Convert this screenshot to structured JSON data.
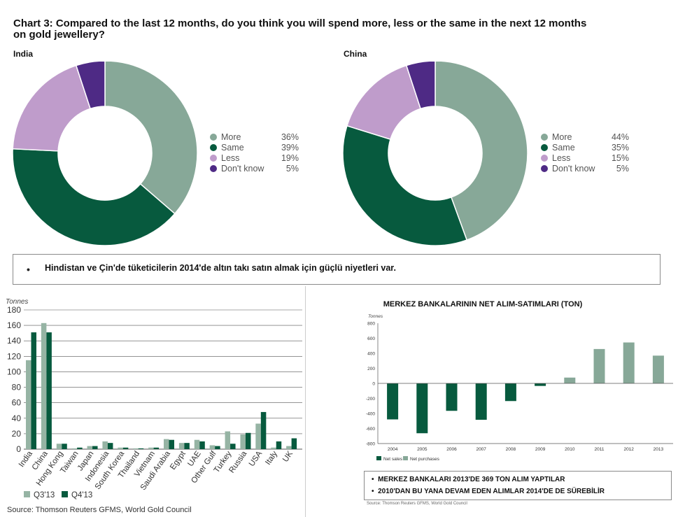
{
  "header": {
    "title_line1": "Chart 3: Compared to the last 12 months, do you think you will spend more, less or the same in the next 12 months",
    "title_line2": "on gold jewellery?"
  },
  "colors": {
    "more": "#87a898",
    "same": "#075a3e",
    "less": "#bf9ccb",
    "dontknow": "#4e2a85",
    "q3": "#96b4a4",
    "q4": "#075a3e",
    "cb_bar": "#87a898",
    "cb_sale": "#075a3e"
  },
  "chart_data": [
    {
      "type": "pie",
      "title": "India",
      "categories": [
        "More",
        "Same",
        "Less",
        "Don't know"
      ],
      "values": [
        36,
        39,
        19,
        5
      ],
      "labels": [
        "36%",
        "39%",
        "19%",
        "5%"
      ],
      "legend": "right"
    },
    {
      "type": "pie",
      "title": "China",
      "categories": [
        "More",
        "Same",
        "Less",
        "Don't know"
      ],
      "values": [
        44,
        35,
        15,
        5
      ],
      "labels": [
        "44%",
        "35%",
        "15%",
        "5%"
      ],
      "legend": "right"
    },
    {
      "type": "bar",
      "title": "",
      "ylabel": "Tonnes",
      "ylim": [
        0,
        180
      ],
      "yticks": [
        0,
        20,
        40,
        60,
        80,
        100,
        120,
        140,
        160,
        180
      ],
      "grid": true,
      "legend": "bottom-left",
      "categories": [
        "India",
        "China",
        "Hong Kong",
        "Taiwan",
        "Japan",
        "Indonesia",
        "South Korea",
        "Thailand",
        "Vietnam",
        "Saudi Arabia",
        "Egypt",
        "UAE",
        "Other Gulf",
        "Turkey",
        "Russia",
        "USA",
        "Italy",
        "UK"
      ],
      "series": [
        {
          "name": "Q3'13",
          "values": [
            115,
            163,
            7,
            1,
            4,
            10,
            2,
            1,
            2,
            13,
            8,
            12,
            5,
            23,
            19,
            33,
            2,
            4
          ]
        },
        {
          "name": "Q4'13",
          "values": [
            151,
            151,
            7,
            2,
            4,
            8,
            2,
            1,
            2,
            12,
            8,
            10,
            4,
            7,
            21,
            48,
            10,
            14
          ]
        }
      ],
      "source": "Source: Thomson Reuters GFMS, World Gold Council"
    },
    {
      "type": "bar",
      "title": "MERKEZ BANKALARININ NET ALIM-SATIMLARI (TON)",
      "ylabel": "Tonnes",
      "ylim": [
        -800,
        800
      ],
      "yticks": [
        -800,
        -600,
        -400,
        -200,
        0,
        200,
        400,
        600,
        800
      ],
      "grid": false,
      "legend": "bottom-left",
      "categories": [
        "2004",
        "2005",
        "2006",
        "2007",
        "2008",
        "2009",
        "2010",
        "2011",
        "2012",
        "2013"
      ],
      "values": [
        -479,
        -663,
        -365,
        -484,
        -235,
        -34,
        77,
        457,
        544,
        369
      ],
      "legend_entries": [
        "Net sales",
        "Net purchases"
      ],
      "source": "Source: Thomson Reuters GFMS, World Gold Council"
    }
  ],
  "note": {
    "bullet": "•",
    "text": "Hindistan ve Çin'de tüketicilerin 2014'de altın takı satın almak için güçlü  niyetleri var."
  },
  "notes2": {
    "line1": "MERKEZ BANKALARI 2013'DE 369 TON ALIM YAPTILAR",
    "line2": "2010'DAN BU YANA DEVAM EDEN ALIMLAR 2014'DE DE SÜREBİLİR",
    "bullet": "•"
  }
}
